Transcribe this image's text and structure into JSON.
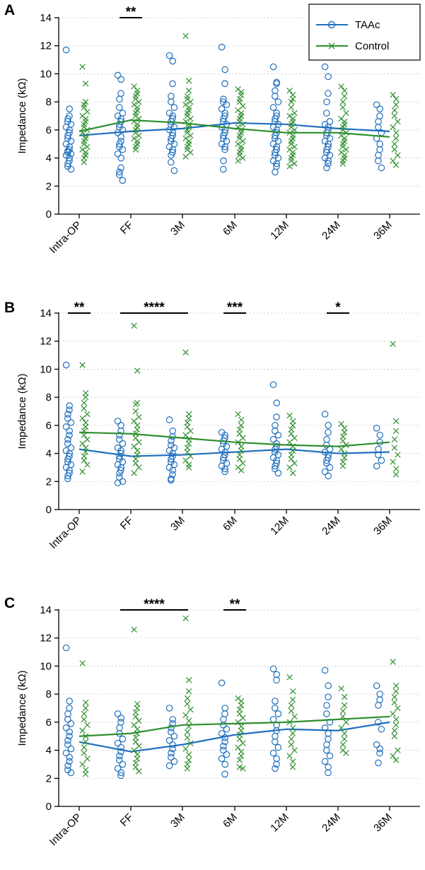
{
  "colors": {
    "taac": "#1f6fbf",
    "control": "#2f8f2f",
    "axis": "#000000"
  },
  "legend": {
    "items": [
      {
        "label": "TAAc",
        "series": "taac"
      },
      {
        "label": "Control",
        "series": "control"
      }
    ]
  },
  "chart_data": [
    {
      "panel_letter": "A",
      "type": "scatter",
      "ylabel": "Impedance (kΩ)",
      "ylim": [
        0,
        14
      ],
      "yticks": [
        "0",
        "2",
        "4",
        "6",
        "8",
        "10",
        "12",
        "14"
      ],
      "categories": [
        "Intra-OP",
        "FF",
        "3M",
        "6M",
        "12M",
        "24M",
        "36M"
      ],
      "legend": true,
      "series": [
        {
          "name": "TAAc",
          "key": "taac",
          "marker": "circle",
          "mean_line": [
            5.6,
            5.9,
            6.1,
            6.5,
            6.4,
            6.1,
            5.9
          ],
          "points": [
            [
              11.7,
              7.5,
              7.0,
              6.8,
              6.6,
              6.4,
              6.2,
              6.0,
              5.8,
              5.6,
              5.4,
              5.2,
              5.0,
              4.8,
              4.6,
              4.5,
              4.4,
              4.3,
              4.2,
              4.0,
              3.8,
              3.6,
              3.4,
              3.2
            ],
            [
              9.9,
              9.6,
              8.6,
              8.2,
              7.6,
              7.2,
              7.0,
              6.8,
              6.6,
              6.4,
              6.2,
              6.0,
              5.8,
              5.5,
              5.2,
              5.0,
              4.8,
              4.6,
              4.3,
              4.0,
              3.3,
              3.0,
              2.8,
              2.4
            ],
            [
              11.3,
              10.9,
              9.3,
              8.4,
              8.0,
              7.6,
              7.2,
              7.0,
              6.8,
              6.6,
              6.4,
              6.2,
              6.0,
              5.8,
              5.6,
              5.4,
              5.2,
              5.0,
              4.8,
              4.6,
              4.4,
              4.2,
              3.7,
              3.1
            ],
            [
              11.9,
              10.3,
              9.3,
              8.2,
              8.0,
              7.8,
              7.5,
              7.2,
              7.0,
              6.8,
              6.6,
              6.4,
              6.2,
              6.0,
              5.8,
              5.6,
              5.4,
              5.2,
              5.0,
              4.8,
              4.6,
              3.8,
              3.2
            ],
            [
              10.5,
              9.4,
              9.3,
              8.8,
              8.4,
              8.0,
              7.6,
              7.2,
              7.0,
              6.8,
              6.6,
              6.4,
              6.2,
              6.0,
              5.8,
              5.6,
              5.4,
              5.2,
              5.0,
              4.8,
              4.6,
              4.4,
              4.2,
              4.0,
              3.8,
              3.6,
              3.4,
              3.0
            ],
            [
              10.5,
              9.8,
              8.6,
              8.0,
              7.2,
              6.6,
              6.4,
              6.2,
              6.0,
              5.8,
              5.6,
              5.4,
              5.2,
              5.0,
              4.8,
              4.6,
              4.4,
              4.2,
              4.0,
              3.8,
              3.6,
              3.3
            ],
            [
              7.8,
              7.5,
              7.0,
              6.6,
              6.2,
              5.8,
              5.4,
              5.0,
              4.6,
              4.2,
              3.8,
              3.3
            ]
          ]
        },
        {
          "name": "Control",
          "key": "control",
          "marker": "x",
          "mean_line": [
            5.9,
            6.7,
            6.5,
            6.1,
            5.8,
            5.8,
            5.5
          ],
          "points": [
            [
              10.5,
              9.3,
              8.0,
              7.8,
              7.6,
              7.3,
              7.0,
              6.8,
              6.6,
              6.4,
              6.2,
              6.0,
              5.8,
              5.6,
              5.4,
              5.2,
              5.0,
              4.8,
              4.6,
              4.4,
              4.2,
              4.0,
              3.7
            ],
            [
              9.1,
              8.8,
              8.6,
              8.4,
              8.2,
              8.0,
              7.8,
              7.6,
              7.4,
              7.2,
              7.0,
              6.8,
              6.6,
              6.4,
              6.2,
              6.0,
              5.8,
              5.6,
              5.4,
              5.2,
              5.0,
              4.8,
              4.6
            ],
            [
              12.7,
              9.5,
              8.8,
              8.4,
              8.2,
              8.0,
              7.8,
              7.6,
              7.4,
              7.2,
              7.0,
              6.8,
              6.6,
              6.4,
              6.2,
              6.0,
              5.8,
              5.6,
              5.4,
              5.2,
              5.0,
              4.8,
              4.6,
              4.4,
              4.1
            ],
            [
              8.9,
              8.7,
              8.5,
              8.2,
              8.0,
              7.7,
              7.4,
              7.2,
              7.0,
              6.8,
              6.6,
              6.4,
              6.2,
              6.0,
              5.8,
              5.6,
              5.4,
              5.2,
              5.0,
              4.8,
              4.6,
              4.4,
              4.2,
              4.0,
              3.8
            ],
            [
              8.8,
              8.5,
              8.2,
              8.0,
              7.6,
              7.2,
              7.0,
              6.8,
              6.6,
              6.4,
              6.2,
              6.0,
              5.8,
              5.6,
              5.4,
              5.2,
              5.0,
              4.8,
              4.6,
              4.4,
              4.2,
              4.0,
              3.8,
              3.6,
              3.4
            ],
            [
              9.1,
              8.8,
              8.4,
              8.0,
              7.6,
              7.2,
              6.8,
              6.6,
              6.4,
              6.2,
              6.0,
              5.8,
              5.6,
              5.4,
              5.2,
              5.0,
              4.8,
              4.6,
              4.4,
              4.2,
              4.0,
              3.8,
              3.6
            ],
            [
              8.5,
              8.2,
              7.8,
              7.4,
              7.0,
              6.6,
              6.2,
              5.8,
              5.4,
              5.0,
              4.6,
              4.2,
              3.8,
              3.5
            ]
          ]
        }
      ],
      "significance": [
        {
          "from": "FF",
          "to": "FF",
          "label": "**"
        }
      ]
    },
    {
      "panel_letter": "B",
      "type": "scatter",
      "ylabel": "Impedance (kΩ)",
      "ylim": [
        0,
        14
      ],
      "yticks": [
        "0",
        "2",
        "4",
        "6",
        "8",
        "10",
        "12",
        "14"
      ],
      "categories": [
        "Intra-OP",
        "FF",
        "3M",
        "6M",
        "12M",
        "24M",
        "36M"
      ],
      "legend": false,
      "series": [
        {
          "name": "TAAc",
          "key": "taac",
          "marker": "circle",
          "mean_line": [
            4.3,
            3.8,
            3.9,
            4.1,
            4.3,
            4.0,
            4.1
          ],
          "points": [
            [
              10.3,
              7.4,
              7.1,
              6.8,
              6.5,
              6.2,
              5.9,
              5.6,
              5.3,
              5.0,
              4.7,
              4.4,
              4.2,
              4.0,
              3.8,
              3.6,
              3.4,
              3.2,
              3.0,
              2.8,
              2.6,
              2.4,
              2.2
            ],
            [
              6.3,
              6.0,
              5.6,
              5.3,
              5.0,
              4.7,
              4.4,
              4.2,
              4.0,
              3.8,
              3.6,
              3.4,
              3.2,
              3.0,
              2.8,
              2.6,
              2.3,
              2.0,
              1.9
            ],
            [
              6.4,
              5.6,
              5.2,
              4.9,
              4.6,
              4.4,
              4.2,
              4.0,
              3.8,
              3.6,
              3.4,
              3.2,
              3.0,
              2.8,
              2.5,
              2.2,
              2.1
            ],
            [
              5.5,
              5.3,
              5.1,
              4.9,
              4.7,
              4.5,
              4.3,
              4.1,
              3.9,
              3.7,
              3.5,
              3.3,
              3.1,
              2.9,
              2.7
            ],
            [
              8.9,
              7.6,
              6.6,
              6.0,
              5.6,
              5.3,
              5.0,
              4.7,
              4.5,
              4.3,
              4.1,
              3.9,
              3.7,
              3.5,
              3.3,
              3.1,
              2.9,
              2.6
            ],
            [
              6.8,
              6.0,
              5.5,
              5.0,
              4.6,
              4.3,
              4.1,
              3.9,
              3.7,
              3.5,
              3.3,
              3.0,
              2.7,
              2.4
            ],
            [
              5.8,
              5.3,
              4.8,
              4.3,
              3.9,
              3.5,
              3.1
            ]
          ]
        },
        {
          "name": "Control",
          "key": "control",
          "marker": "x",
          "mean_line": [
            5.5,
            5.4,
            5.1,
            4.8,
            4.6,
            4.5,
            4.8
          ],
          "points": [
            [
              10.3,
              8.3,
              8.0,
              7.6,
              7.2,
              6.8,
              6.5,
              6.2,
              5.9,
              5.6,
              5.3,
              5.0,
              4.7,
              4.4,
              4.1,
              3.8,
              3.5,
              3.2,
              2.7
            ],
            [
              13.1,
              9.9,
              7.6,
              7.5,
              7.0,
              6.6,
              6.3,
              6.0,
              5.7,
              5.4,
              5.1,
              4.8,
              4.5,
              4.2,
              3.9,
              3.6,
              3.3,
              3.0,
              2.6
            ],
            [
              11.2,
              6.8,
              6.5,
              6.2,
              5.9,
              5.6,
              5.3,
              5.0,
              4.7,
              4.4,
              4.1,
              3.8,
              3.5,
              3.2,
              3.0
            ],
            [
              6.8,
              6.4,
              6.0,
              5.7,
              5.4,
              5.1,
              4.8,
              4.5,
              4.2,
              3.9,
              3.6,
              3.3,
              3.0,
              2.8
            ],
            [
              6.7,
              6.3,
              6.0,
              5.7,
              5.4,
              5.1,
              4.8,
              4.5,
              4.2,
              3.9,
              3.6,
              3.3,
              3.0,
              2.6
            ],
            [
              6.1,
              5.8,
              5.5,
              5.2,
              4.9,
              4.6,
              4.3,
              4.0,
              3.7,
              3.4,
              3.1
            ],
            [
              11.8,
              6.3,
              5.6,
              5.0,
              4.4,
              3.9,
              3.4,
              2.9,
              2.5
            ]
          ]
        }
      ],
      "significance": [
        {
          "from": "Intra-OP",
          "to": "Intra-OP",
          "label": "**"
        },
        {
          "from": "FF",
          "to": "3M",
          "label": "****"
        },
        {
          "from": "6M",
          "to": "6M",
          "label": "***"
        },
        {
          "from": "24M",
          "to": "24M",
          "label": "*"
        }
      ]
    },
    {
      "panel_letter": "C",
      "type": "scatter",
      "ylabel": "Impedance (kΩ)",
      "ylim": [
        0,
        14
      ],
      "yticks": [
        "0",
        "2",
        "4",
        "6",
        "8",
        "10",
        "12",
        "14"
      ],
      "categories": [
        "Intra-OP",
        "FF",
        "3M",
        "6M",
        "12M",
        "24M",
        "36M"
      ],
      "legend": false,
      "series": [
        {
          "name": "TAAc",
          "key": "taac",
          "marker": "circle",
          "mean_line": [
            4.6,
            3.9,
            4.4,
            5.1,
            5.5,
            5.4,
            6.0
          ],
          "points": [
            [
              11.3,
              7.5,
              7.0,
              6.6,
              6.2,
              5.9,
              5.6,
              5.3,
              5.0,
              4.7,
              4.4,
              4.1,
              3.8,
              3.5,
              3.2,
              2.9,
              2.6,
              2.4
            ],
            [
              6.6,
              6.3,
              6.0,
              5.6,
              5.2,
              4.8,
              4.5,
              4.2,
              3.9,
              3.6,
              3.3,
              3.0,
              2.7,
              2.4,
              2.2
            ],
            [
              7.0,
              6.2,
              5.9,
              5.6,
              5.3,
              5.0,
              4.7,
              4.4,
              4.1,
              3.8,
              3.5,
              3.2,
              2.9
            ],
            [
              8.8,
              7.0,
              6.6,
              6.2,
              5.8,
              5.5,
              5.2,
              4.9,
              4.6,
              4.3,
              4.0,
              3.7,
              3.4,
              3.0,
              2.3
            ],
            [
              9.8,
              9.4,
              9.0,
              7.5,
              7.0,
              6.6,
              6.2,
              5.8,
              5.4,
              5.0,
              4.6,
              4.2,
              3.8,
              3.4,
              3.0,
              2.7
            ],
            [
              9.7,
              8.6,
              7.8,
              7.2,
              6.6,
              6.0,
              5.6,
              5.2,
              4.8,
              4.4,
              4.0,
              3.6,
              3.2,
              2.8,
              2.4
            ],
            [
              8.6,
              8.0,
              7.6,
              7.2,
              6.0,
              5.5,
              4.4,
              4.1,
              3.8,
              3.1
            ]
          ]
        },
        {
          "name": "Control",
          "key": "control",
          "marker": "x",
          "mean_line": [
            5.0,
            5.2,
            5.8,
            5.9,
            6.0,
            6.2,
            6.4
          ],
          "points": [
            [
              10.2,
              7.4,
              7.0,
              6.6,
              6.2,
              5.8,
              5.4,
              5.0,
              4.6,
              4.2,
              3.8,
              3.4,
              3.0,
              2.6,
              2.3
            ],
            [
              12.6,
              7.3,
              7.0,
              6.7,
              6.4,
              6.1,
              5.8,
              5.5,
              5.2,
              4.9,
              4.6,
              4.3,
              4.0,
              3.7,
              3.4,
              3.1,
              2.8,
              2.5
            ],
            [
              13.4,
              9.0,
              8.2,
              7.7,
              7.3,
              6.9,
              6.5,
              6.1,
              5.7,
              5.3,
              4.9,
              4.5,
              4.1,
              3.7,
              3.3,
              3.0,
              2.7
            ],
            [
              7.7,
              7.5,
              7.2,
              6.9,
              6.6,
              6.3,
              6.0,
              5.7,
              5.4,
              5.1,
              4.8,
              4.5,
              4.2,
              3.9,
              3.6,
              3.3,
              2.8,
              2.7
            ],
            [
              9.2,
              8.2,
              7.6,
              7.2,
              6.8,
              6.4,
              6.0,
              5.6,
              5.2,
              4.8,
              4.4,
              4.0,
              3.6,
              3.2,
              2.8
            ],
            [
              8.4,
              7.8,
              7.2,
              6.8,
              6.4,
              6.0,
              5.6,
              5.2,
              4.8,
              4.4,
              4.0,
              3.8
            ],
            [
              10.3,
              8.6,
              8.2,
              7.8,
              7.4,
              7.0,
              6.6,
              6.2,
              5.8,
              5.4,
              5.0,
              4.0,
              3.6,
              3.3
            ]
          ]
        }
      ],
      "significance": [
        {
          "from": "FF",
          "to": "3M",
          "label": "****"
        },
        {
          "from": "6M",
          "to": "6M",
          "label": "**"
        }
      ]
    }
  ]
}
